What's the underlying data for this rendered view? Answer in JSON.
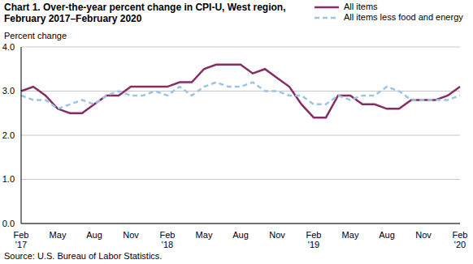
{
  "chart_data": {
    "type": "line",
    "title": "Chart 1. Over-the-year percent change in CPI-U, West region, February 2017–February 2020",
    "ylabel": "Percent change",
    "source": "Source: U.S. Bureau of Labor Statistics.",
    "categories": [
      "Feb\n'17",
      null,
      null,
      "May",
      null,
      null,
      "Aug",
      null,
      null,
      "Nov",
      null,
      null,
      "Feb\n'18",
      null,
      null,
      "May",
      null,
      null,
      "Aug",
      null,
      null,
      "Nov",
      null,
      null,
      "Feb\n'19",
      null,
      null,
      "May",
      null,
      null,
      "Aug",
      null,
      null,
      "Nov",
      null,
      null,
      "Feb\n'20"
    ],
    "series": [
      {
        "name": "All items",
        "color": "#862d63",
        "line_style": "solid",
        "values": [
          3.0,
          3.1,
          2.9,
          2.6,
          2.5,
          2.5,
          2.7,
          2.9,
          2.9,
          3.1,
          3.1,
          3.1,
          3.1,
          3.2,
          3.2,
          3.5,
          3.6,
          3.6,
          3.6,
          3.4,
          3.5,
          3.3,
          3.1,
          2.7,
          2.4,
          2.4,
          2.9,
          2.9,
          2.7,
          2.7,
          2.6,
          2.6,
          2.8,
          2.8,
          2.8,
          2.9,
          3.1
        ]
      },
      {
        "name": "All items less food and energy",
        "color": "#9dc3e6",
        "line_style": "dashed",
        "values": [
          2.9,
          2.8,
          2.8,
          2.6,
          2.7,
          2.8,
          2.7,
          2.9,
          3.0,
          2.9,
          2.9,
          3.0,
          2.9,
          3.1,
          2.9,
          3.1,
          3.2,
          3.1,
          3.1,
          3.2,
          3.0,
          3.0,
          2.9,
          2.9,
          2.7,
          2.7,
          2.9,
          2.8,
          2.9,
          2.9,
          3.1,
          3.0,
          2.8,
          2.8,
          2.8,
          2.8,
          2.9
        ]
      }
    ],
    "ylim": [
      0,
      4
    ],
    "yticks": [
      {
        "value": 0,
        "label": "0.0"
      },
      {
        "value": 1,
        "label": "1.0"
      },
      {
        "value": 2,
        "label": "2.0"
      },
      {
        "value": 3,
        "label": "3.0"
      },
      {
        "value": 4,
        "label": "4.0"
      }
    ],
    "grid": true,
    "legend": "top right"
  }
}
